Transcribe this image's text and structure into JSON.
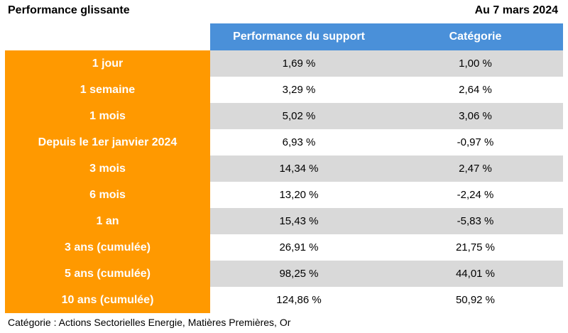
{
  "header": {
    "title": "Performance glissante",
    "date": "Au 7 mars 2024"
  },
  "table": {
    "columns": [
      "",
      "Performance du support",
      "Catégorie"
    ],
    "rows": [
      {
        "period": "1 jour",
        "support": "1,69 %",
        "category": "1,00 %"
      },
      {
        "period": "1 semaine",
        "support": "3,29 %",
        "category": "2,64 %"
      },
      {
        "period": "1 mois",
        "support": "5,02 %",
        "category": "3,06 %"
      },
      {
        "period": "Depuis le 1er janvier 2024",
        "support": "6,93 %",
        "category": "-0,97 %"
      },
      {
        "period": "3 mois",
        "support": "14,34 %",
        "category": "2,47 %"
      },
      {
        "period": "6 mois",
        "support": "13,20 %",
        "category": "-2,24 %"
      },
      {
        "period": "1 an",
        "support": "15,43 %",
        "category": "-5,83 %"
      },
      {
        "period": "3 ans (cumulée)",
        "support": "26,91 %",
        "category": "21,75 %"
      },
      {
        "period": "5 ans (cumulée)",
        "support": "98,25 %",
        "category": "44,01 %"
      },
      {
        "period": "10 ans (cumulée)",
        "support": "124,86 %",
        "category": "50,92 %"
      }
    ]
  },
  "footnote": "Catégorie : Actions Sectorielles Energie, Matières Premières, Or",
  "colors": {
    "header_blue": "#4a90d9",
    "period_orange": "#ff9900",
    "row_gray": "#d9d9d9"
  }
}
